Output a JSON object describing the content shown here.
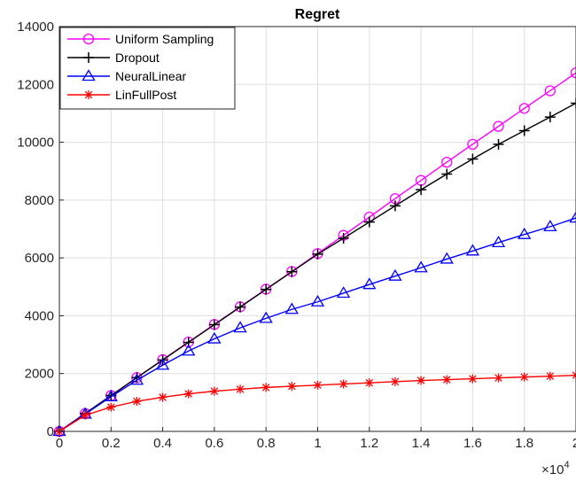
{
  "chart_data": {
    "type": "line",
    "title": "Regret",
    "xlabel": "",
    "ylabel": "",
    "x_multiplier": "×10",
    "x_multiplier_exponent": "4",
    "xlim": [
      0,
      2
    ],
    "ylim": [
      0,
      14000
    ],
    "x_ticks": [
      "0",
      "0.2",
      "0.4",
      "0.6",
      "0.8",
      "1",
      "1.2",
      "1.4",
      "1.6",
      "1.8",
      "2"
    ],
    "y_ticks": [
      "0",
      "2000",
      "4000",
      "6000",
      "8000",
      "10000",
      "12000",
      "14000"
    ],
    "grid": true,
    "legend_position": "top-left",
    "x": [
      0,
      0.1,
      0.2,
      0.3,
      0.4,
      0.5,
      0.6,
      0.7,
      0.8,
      0.9,
      1.0,
      1.1,
      1.2,
      1.3,
      1.4,
      1.5,
      1.6,
      1.7,
      1.8,
      1.9,
      2.0
    ],
    "series": [
      {
        "name": "Uniform Sampling",
        "color": "#ff00ff",
        "marker": "circle",
        "values": [
          0,
          620,
          1240,
          1860,
          2480,
          3090,
          3700,
          4310,
          4920,
          5530,
          6150,
          6780,
          7410,
          8050,
          8680,
          9310,
          9930,
          10550,
          11170,
          11780,
          12400
        ]
      },
      {
        "name": "Dropout",
        "color": "#000000",
        "marker": "plus",
        "values": [
          0,
          620,
          1240,
          1860,
          2470,
          3080,
          3690,
          4300,
          4910,
          5520,
          6130,
          6680,
          7240,
          7800,
          8360,
          8900,
          9420,
          9930,
          10400,
          10870,
          11350
        ]
      },
      {
        "name": "NeuralLinear",
        "color": "#0000ff",
        "marker": "triangle",
        "values": [
          0,
          600,
          1200,
          1770,
          2290,
          2780,
          3200,
          3580,
          3910,
          4220,
          4480,
          4780,
          5080,
          5370,
          5660,
          5960,
          6240,
          6530,
          6810,
          7080,
          7380
        ]
      },
      {
        "name": "LinFullPost",
        "color": "#ff0000",
        "marker": "asterisk",
        "values": [
          0,
          560,
          840,
          1040,
          1180,
          1300,
          1390,
          1460,
          1520,
          1560,
          1600,
          1640,
          1680,
          1720,
          1760,
          1790,
          1820,
          1850,
          1880,
          1910,
          1940
        ]
      }
    ]
  }
}
